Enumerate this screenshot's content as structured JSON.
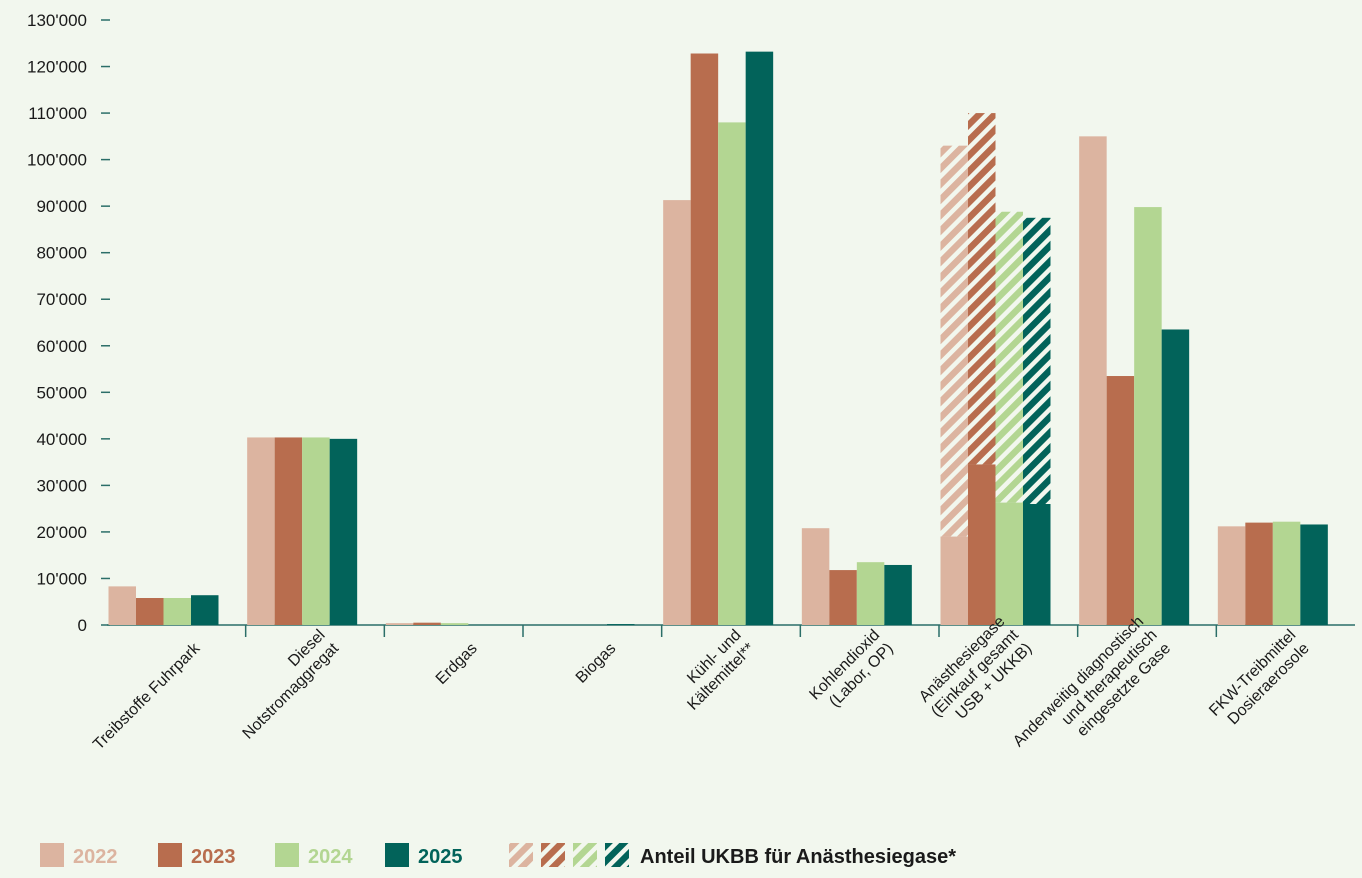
{
  "chart_data": {
    "type": "bar",
    "categories": [
      [
        "Treibstoffe Fuhrpark"
      ],
      [
        "Diesel",
        "Notstromaggregat"
      ],
      [
        "Erdgas"
      ],
      [
        "Biogas"
      ],
      [
        "Kühl- und",
        "Kältemittel**"
      ],
      [
        "Kohlendioxid",
        "(Labor, OP)"
      ],
      [
        "Anästhesiegase",
        "(Einkauf gesamt",
        "USB + UKKB)"
      ],
      [
        "Anderweitig diagnostisch",
        "und therapeutisch",
        "eingesetzte Gase"
      ],
      [
        "FKW-Treibmittel",
        "Dosieraerosole"
      ]
    ],
    "series": [
      {
        "name": "2022",
        "color": "#dcb4a0",
        "values": [
          8300,
          40300,
          400,
          0,
          91300,
          20800,
          103000,
          105000,
          21200
        ]
      },
      {
        "name": "2023",
        "color": "#b86d4e",
        "values": [
          5800,
          40300,
          500,
          0,
          122800,
          11800,
          110000,
          53500,
          22000
        ]
      },
      {
        "name": "2024",
        "color": "#b3d692",
        "values": [
          5800,
          40300,
          400,
          0,
          108000,
          13500,
          88800,
          89800,
          22200
        ]
      },
      {
        "name": "2025",
        "color": "#02635a",
        "values": [
          6400,
          40000,
          0,
          200,
          123200,
          12900,
          87500,
          63500,
          21600
        ]
      }
    ],
    "ukbb_share": {
      "category_index": 6,
      "values": [
        84000,
        75500,
        62500,
        61500
      ]
    },
    "ylim": [
      0,
      130000
    ],
    "yticks": [
      "0",
      "10'000",
      "20'000",
      "30'000",
      "40'000",
      "50'000",
      "60'000",
      "70'000",
      "80'000",
      "90'000",
      "100'000",
      "110'000",
      "120'000",
      "130'000"
    ],
    "grid": false,
    "legend": {
      "position": "bottom-left",
      "ukbb_label": "Anteil UKBB für Anästhesiegase*"
    }
  }
}
